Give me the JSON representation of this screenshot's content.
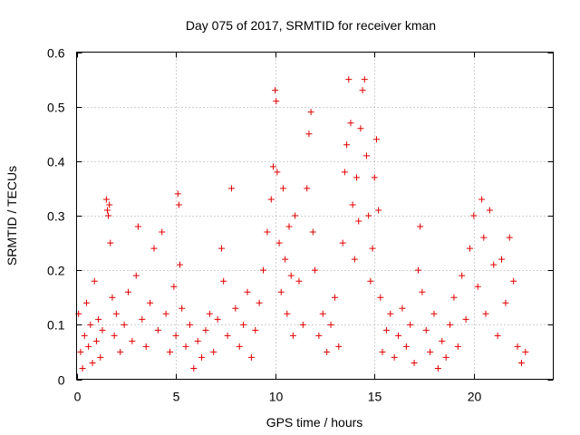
{
  "chart_data": {
    "type": "scatter",
    "title": "Day 075 of 2017, SRMTID for receiver kman",
    "xlabel": "GPS time / hours",
    "ylabel": "SRMTID / TECUs",
    "xlim": [
      0,
      24
    ],
    "ylim": [
      0,
      0.6
    ],
    "x_ticks": [
      0,
      5,
      10,
      15,
      20
    ],
    "x_tick_labels": [
      "0",
      "5",
      "10",
      "15",
      "20"
    ],
    "y_ticks": [
      0,
      0.1,
      0.2,
      0.3,
      0.4,
      0.5,
      0.6
    ],
    "y_tick_labels": [
      "0",
      "0.1",
      "0.2",
      "0.3",
      "0.4",
      "0.5",
      "0.6"
    ],
    "grid": true,
    "marker": "+",
    "color": "#e00000",
    "series": [
      {
        "name": "SRMTID",
        "points": [
          [
            0.1,
            0.12
          ],
          [
            0.2,
            0.05
          ],
          [
            0.3,
            0.02
          ],
          [
            0.4,
            0.08
          ],
          [
            0.5,
            0.14
          ],
          [
            0.6,
            0.06
          ],
          [
            0.7,
            0.1
          ],
          [
            0.8,
            0.03
          ],
          [
            0.9,
            0.18
          ],
          [
            1.0,
            0.07
          ],
          [
            1.1,
            0.11
          ],
          [
            1.2,
            0.04
          ],
          [
            1.3,
            0.09
          ],
          [
            1.5,
            0.33
          ],
          [
            1.55,
            0.31
          ],
          [
            1.6,
            0.3
          ],
          [
            1.65,
            0.32
          ],
          [
            1.7,
            0.25
          ],
          [
            1.8,
            0.15
          ],
          [
            1.9,
            0.08
          ],
          [
            2.0,
            0.12
          ],
          [
            2.2,
            0.05
          ],
          [
            2.4,
            0.1
          ],
          [
            2.6,
            0.16
          ],
          [
            2.8,
            0.07
          ],
          [
            3.0,
            0.19
          ],
          [
            3.1,
            0.28
          ],
          [
            3.3,
            0.11
          ],
          [
            3.5,
            0.06
          ],
          [
            3.7,
            0.14
          ],
          [
            3.9,
            0.24
          ],
          [
            4.1,
            0.09
          ],
          [
            4.3,
            0.27
          ],
          [
            4.5,
            0.12
          ],
          [
            4.7,
            0.05
          ],
          [
            4.9,
            0.17
          ],
          [
            5.0,
            0.08
          ],
          [
            5.1,
            0.34
          ],
          [
            5.15,
            0.32
          ],
          [
            5.2,
            0.21
          ],
          [
            5.3,
            0.13
          ],
          [
            5.5,
            0.06
          ],
          [
            5.7,
            0.1
          ],
          [
            5.9,
            0.02
          ],
          [
            6.1,
            0.07
          ],
          [
            6.3,
            0.04
          ],
          [
            6.5,
            0.09
          ],
          [
            6.7,
            0.12
          ],
          [
            6.9,
            0.05
          ],
          [
            7.1,
            0.11
          ],
          [
            7.3,
            0.24
          ],
          [
            7.4,
            0.18
          ],
          [
            7.6,
            0.08
          ],
          [
            7.8,
            0.35
          ],
          [
            8.0,
            0.13
          ],
          [
            8.2,
            0.06
          ],
          [
            8.4,
            0.1
          ],
          [
            8.6,
            0.16
          ],
          [
            8.8,
            0.04
          ],
          [
            9.0,
            0.09
          ],
          [
            9.2,
            0.14
          ],
          [
            9.4,
            0.2
          ],
          [
            9.6,
            0.27
          ],
          [
            9.8,
            0.33
          ],
          [
            9.9,
            0.39
          ],
          [
            10.0,
            0.53
          ],
          [
            10.05,
            0.51
          ],
          [
            10.1,
            0.38
          ],
          [
            10.2,
            0.25
          ],
          [
            10.3,
            0.16
          ],
          [
            10.4,
            0.35
          ],
          [
            10.5,
            0.22
          ],
          [
            10.6,
            0.12
          ],
          [
            10.7,
            0.28
          ],
          [
            10.8,
            0.19
          ],
          [
            10.9,
            0.08
          ],
          [
            11.0,
            0.3
          ],
          [
            11.2,
            0.18
          ],
          [
            11.4,
            0.1
          ],
          [
            11.6,
            0.35
          ],
          [
            11.7,
            0.45
          ],
          [
            11.8,
            0.49
          ],
          [
            11.9,
            0.27
          ],
          [
            12.0,
            0.2
          ],
          [
            12.2,
            0.08
          ],
          [
            12.4,
            0.12
          ],
          [
            12.6,
            0.05
          ],
          [
            12.8,
            0.1
          ],
          [
            13.0,
            0.15
          ],
          [
            13.2,
            0.06
          ],
          [
            13.4,
            0.25
          ],
          [
            13.5,
            0.38
          ],
          [
            13.6,
            0.43
          ],
          [
            13.7,
            0.55
          ],
          [
            13.8,
            0.47
          ],
          [
            13.9,
            0.32
          ],
          [
            14.0,
            0.22
          ],
          [
            14.1,
            0.37
          ],
          [
            14.2,
            0.29
          ],
          [
            14.3,
            0.46
          ],
          [
            14.4,
            0.53
          ],
          [
            14.5,
            0.55
          ],
          [
            14.6,
            0.41
          ],
          [
            14.7,
            0.3
          ],
          [
            14.8,
            0.18
          ],
          [
            14.9,
            0.24
          ],
          [
            15.0,
            0.37
          ],
          [
            15.1,
            0.44
          ],
          [
            15.2,
            0.31
          ],
          [
            15.3,
            0.15
          ],
          [
            15.4,
            0.05
          ],
          [
            15.6,
            0.09
          ],
          [
            15.8,
            0.12
          ],
          [
            16.0,
            0.04
          ],
          [
            16.2,
            0.08
          ],
          [
            16.4,
            0.13
          ],
          [
            16.6,
            0.06
          ],
          [
            16.8,
            0.1
          ],
          [
            17.0,
            0.03
          ],
          [
            17.2,
            0.2
          ],
          [
            17.3,
            0.28
          ],
          [
            17.4,
            0.16
          ],
          [
            17.6,
            0.09
          ],
          [
            17.8,
            0.05
          ],
          [
            18.0,
            0.12
          ],
          [
            18.2,
            0.02
          ],
          [
            18.4,
            0.07
          ],
          [
            18.6,
            0.04
          ],
          [
            18.8,
            0.1
          ],
          [
            19.0,
            0.15
          ],
          [
            19.2,
            0.06
          ],
          [
            19.4,
            0.19
          ],
          [
            19.6,
            0.11
          ],
          [
            19.8,
            0.24
          ],
          [
            20.0,
            0.3
          ],
          [
            20.2,
            0.17
          ],
          [
            20.4,
            0.33
          ],
          [
            20.5,
            0.26
          ],
          [
            20.6,
            0.12
          ],
          [
            20.8,
            0.31
          ],
          [
            21.0,
            0.21
          ],
          [
            21.2,
            0.08
          ],
          [
            21.4,
            0.22
          ],
          [
            21.6,
            0.14
          ],
          [
            21.8,
            0.26
          ],
          [
            22.0,
            0.18
          ],
          [
            22.2,
            0.06
          ],
          [
            22.4,
            0.03
          ],
          [
            22.6,
            0.05
          ]
        ]
      }
    ]
  }
}
